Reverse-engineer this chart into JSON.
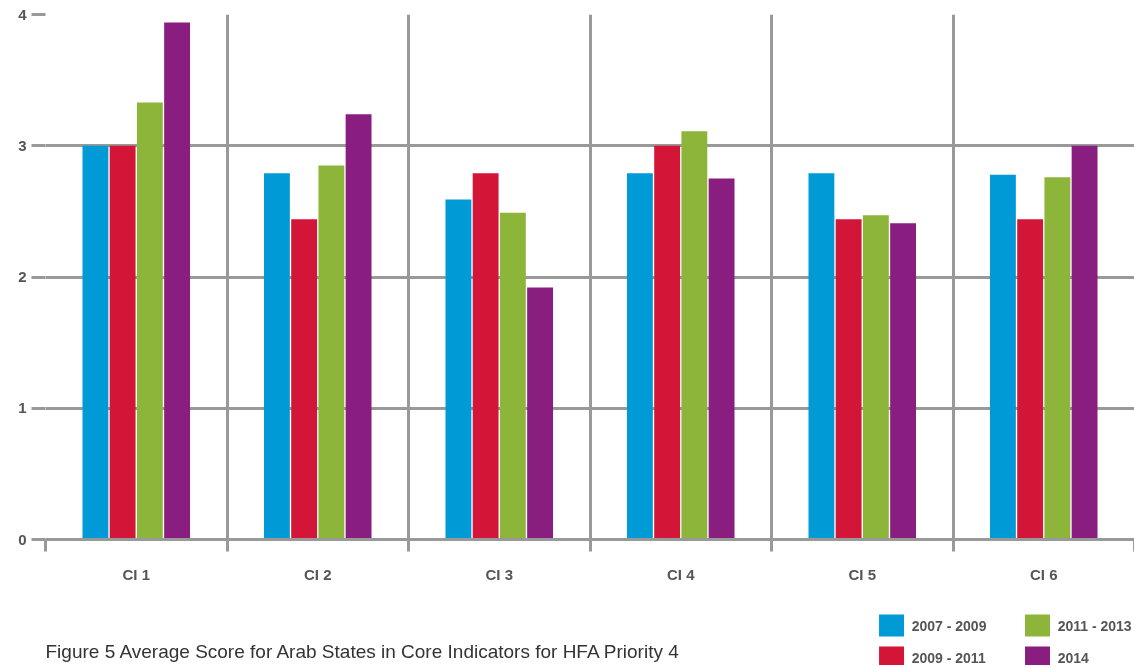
{
  "chart_data": {
    "type": "bar",
    "title": "Figure 5 Average Score for Arab States in Core Indicators for HFA Priority 4",
    "categories": [
      "CI 1",
      "CI 2",
      "CI 3",
      "CI 4",
      "CI 5",
      "CI 6"
    ],
    "series": [
      {
        "name": "2007 - 2009",
        "color": "#009ad6",
        "values": [
          3.0,
          2.79,
          2.59,
          2.79,
          2.79,
          2.78
        ]
      },
      {
        "name": "2009 - 2011",
        "color": "#d31638",
        "values": [
          3.0,
          2.44,
          2.79,
          3.0,
          2.44,
          2.44
        ]
      },
      {
        "name": "2011 - 2013",
        "color": "#8db53a",
        "values": [
          3.33,
          2.85,
          2.49,
          3.11,
          2.47,
          2.76
        ]
      },
      {
        "name": "2014",
        "color": "#8a1d80",
        "values": [
          3.94,
          3.24,
          1.92,
          2.75,
          2.41,
          3.0
        ]
      }
    ],
    "ylim": [
      0,
      4
    ],
    "yticks": [
      0,
      1,
      2,
      3,
      4
    ],
    "grid": true,
    "legend": "bottom right"
  }
}
